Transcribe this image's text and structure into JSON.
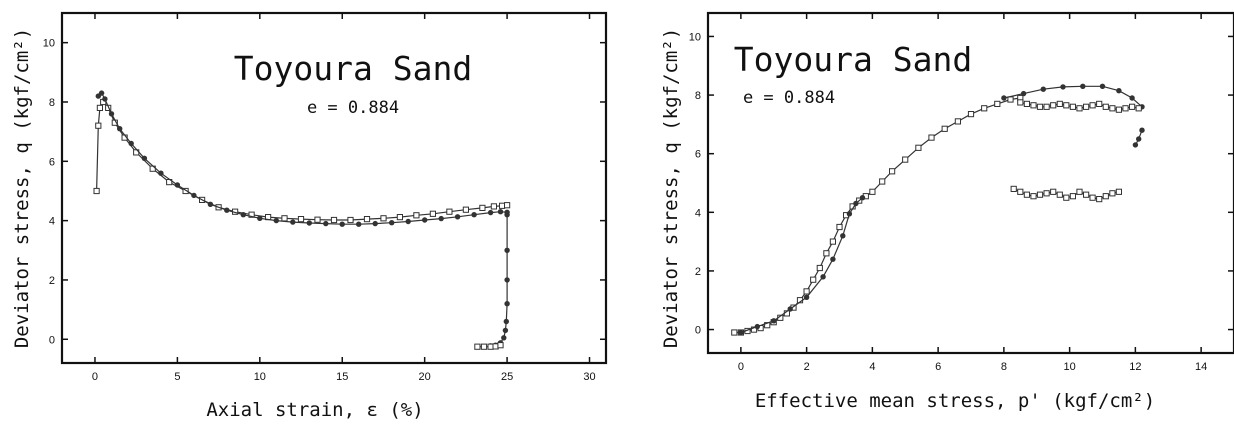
{
  "chart_data": [
    {
      "type": "line",
      "title": "Toyoura Sand",
      "annotation": "e = 0.884",
      "xlabel": "Axial strain,  ε (%)",
      "ylabel": "Deviator stress, q (kgf/cm²)",
      "xlim": [
        -2,
        31
      ],
      "ylim": [
        -0.8,
        11
      ],
      "xticks": [
        0,
        5,
        10,
        15,
        20,
        25,
        30
      ],
      "yticks": [
        0,
        2,
        4,
        6,
        8,
        10
      ],
      "grid": false,
      "legend": "none",
      "series": [
        {
          "marker": "open-square",
          "x": [
            0.1,
            0.2,
            0.3,
            0.5,
            0.8,
            1.2,
            1.8,
            2.5,
            3.5,
            4.5,
            5.5,
            6.5,
            7.5,
            8.5,
            9.5,
            10.5,
            11.5,
            12.5,
            13.5,
            14.5,
            15.5,
            16.5,
            17.5,
            18.5,
            19.5,
            20.5,
            21.5,
            22.5,
            23.5,
            24.2,
            24.7,
            25.0
          ],
          "y": [
            5.0,
            7.2,
            7.8,
            8.0,
            7.8,
            7.3,
            6.8,
            6.3,
            5.75,
            5.3,
            5.0,
            4.7,
            4.45,
            4.3,
            4.2,
            4.12,
            4.08,
            4.05,
            4.03,
            4.02,
            4.02,
            4.05,
            4.08,
            4.12,
            4.18,
            4.23,
            4.3,
            4.37,
            4.43,
            4.48,
            4.5,
            4.52
          ]
        },
        {
          "marker": "filled-circle",
          "x": [
            0.2,
            0.4,
            0.6,
            1.0,
            1.5,
            2.2,
            3.0,
            4.0,
            5.0,
            6.0,
            7.0,
            8.0,
            9.0,
            10.0,
            11.0,
            12.0,
            13.0,
            14.0,
            15.0,
            16.0,
            17.0,
            18.0,
            19.0,
            20.0,
            21.0,
            22.0,
            23.0,
            24.0,
            24.6,
            25.0
          ],
          "y": [
            8.2,
            8.3,
            8.1,
            7.6,
            7.1,
            6.6,
            6.1,
            5.6,
            5.2,
            4.85,
            4.55,
            4.35,
            4.2,
            4.08,
            4.0,
            3.95,
            3.92,
            3.9,
            3.88,
            3.88,
            3.9,
            3.93,
            3.97,
            4.02,
            4.07,
            4.13,
            4.2,
            4.27,
            4.3,
            4.28
          ]
        },
        {
          "marker": "filled-circle",
          "x": [
            25.0,
            25.0,
            25.0,
            25.0,
            24.95,
            24.9,
            24.8,
            24.6,
            24.3,
            24.0
          ],
          "y": [
            4.2,
            3.0,
            2.0,
            1.2,
            0.6,
            0.3,
            0.05,
            -0.12,
            -0.2,
            -0.22
          ]
        },
        {
          "marker": "open-square",
          "x": [
            23.2,
            23.6,
            24.0,
            24.3,
            24.6
          ],
          "y": [
            -0.25,
            -0.25,
            -0.25,
            -0.24,
            -0.2
          ]
        }
      ]
    },
    {
      "type": "line",
      "title": "Toyoura Sand",
      "annotation": "e = 0.884",
      "xlabel": "Effective mean stress, p' (kgf/cm²)",
      "ylabel": "Deviator stress, q (kgf/cm²)",
      "xlim": [
        -1,
        15
      ],
      "ylim": [
        -0.8,
        10.8
      ],
      "xticks": [
        0,
        2,
        4,
        6,
        8,
        10,
        12,
        14
      ],
      "yticks": [
        0,
        2,
        4,
        6,
        8,
        10
      ],
      "grid": false,
      "legend": "none",
      "series": [
        {
          "marker": "open-square",
          "x": [
            -0.2,
            0.0,
            0.2,
            0.4,
            0.6,
            0.8,
            1.0,
            1.2,
            1.4,
            1.6,
            1.8,
            2.0,
            2.2,
            2.4,
            2.6,
            2.8,
            3.0,
            3.2,
            3.4,
            3.6,
            3.8,
            4.0,
            4.3,
            4.6,
            5.0,
            5.4,
            5.8,
            6.2,
            6.6,
            7.0,
            7.4,
            7.8,
            8.2,
            8.5
          ],
          "y": [
            -0.1,
            -0.1,
            -0.05,
            0.0,
            0.05,
            0.15,
            0.25,
            0.4,
            0.55,
            0.75,
            1.0,
            1.3,
            1.7,
            2.1,
            2.6,
            3.0,
            3.5,
            3.9,
            4.2,
            4.4,
            4.55,
            4.7,
            5.05,
            5.4,
            5.8,
            6.2,
            6.55,
            6.85,
            7.1,
            7.35,
            7.55,
            7.7,
            7.85,
            7.9
          ]
        },
        {
          "marker": "filled-circle",
          "x": [
            0.0,
            0.5,
            1.0,
            1.5,
            2.0,
            2.5,
            2.8,
            3.1,
            3.3,
            3.5,
            3.7
          ],
          "y": [
            -0.1,
            0.1,
            0.3,
            0.7,
            1.1,
            1.8,
            2.4,
            3.2,
            3.95,
            4.3,
            4.5
          ]
        },
        {
          "marker": "filled-circle",
          "x": [
            8.0,
            8.6,
            9.2,
            9.8,
            10.4,
            11.0,
            11.5,
            11.9,
            12.2
          ],
          "y": [
            7.9,
            8.05,
            8.2,
            8.28,
            8.3,
            8.3,
            8.15,
            7.9,
            7.6
          ]
        },
        {
          "marker": "filled-circle",
          "x": [
            12.2,
            12.1,
            12.0
          ],
          "y": [
            6.8,
            6.5,
            6.3
          ]
        },
        {
          "marker": "open-square",
          "x": [
            8.5,
            8.7,
            8.9,
            9.1,
            9.3,
            9.5,
            9.7,
            9.9,
            10.1,
            10.3,
            10.5,
            10.7,
            10.9,
            11.1,
            11.3,
            11.5,
            11.7,
            11.9,
            12.1
          ],
          "y": [
            7.75,
            7.7,
            7.65,
            7.6,
            7.6,
            7.65,
            7.7,
            7.65,
            7.6,
            7.55,
            7.6,
            7.65,
            7.7,
            7.6,
            7.55,
            7.5,
            7.55,
            7.6,
            7.55
          ]
        },
        {
          "marker": "open-square",
          "x": [
            8.3,
            8.5,
            8.7,
            8.9,
            9.1,
            9.3,
            9.5,
            9.7,
            9.9,
            10.1,
            10.3,
            10.5,
            10.7,
            10.9,
            11.1,
            11.3,
            11.5
          ],
          "y": [
            4.8,
            4.7,
            4.6,
            4.55,
            4.6,
            4.65,
            4.7,
            4.6,
            4.5,
            4.55,
            4.7,
            4.6,
            4.5,
            4.45,
            4.55,
            4.65,
            4.7
          ]
        }
      ]
    }
  ]
}
